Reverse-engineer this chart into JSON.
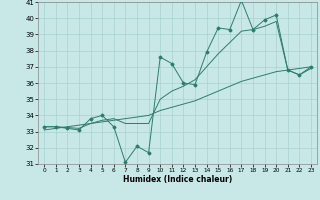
{
  "xlabel": "Humidex (Indice chaleur)",
  "ylabel": "",
  "background_color": "#c8e8e8",
  "grid_color": "#a8d0d0",
  "line_color": "#2e7b6e",
  "x": [
    0,
    1,
    2,
    3,
    4,
    5,
    6,
    7,
    8,
    9,
    10,
    11,
    12,
    13,
    14,
    15,
    16,
    17,
    18,
    19,
    20,
    21,
    22,
    23
  ],
  "y_main": [
    33.3,
    33.3,
    33.2,
    33.1,
    33.8,
    34.0,
    33.3,
    31.1,
    32.1,
    31.7,
    37.6,
    37.2,
    36.0,
    35.9,
    37.9,
    39.4,
    39.3,
    41.1,
    39.3,
    39.9,
    40.2,
    36.8,
    36.5,
    37.0
  ],
  "y_smooth": [
    33.3,
    33.3,
    33.25,
    33.2,
    33.5,
    33.7,
    33.8,
    33.5,
    33.5,
    33.5,
    35.0,
    35.5,
    35.8,
    36.2,
    37.0,
    37.8,
    38.5,
    39.2,
    39.3,
    39.5,
    39.8,
    36.8,
    36.5,
    36.9
  ],
  "y_trend": [
    33.1,
    33.2,
    33.3,
    33.4,
    33.5,
    33.6,
    33.7,
    33.8,
    33.9,
    34.0,
    34.3,
    34.5,
    34.7,
    34.9,
    35.2,
    35.5,
    35.8,
    36.1,
    36.3,
    36.5,
    36.7,
    36.8,
    36.9,
    37.0
  ],
  "ylim": [
    31,
    41
  ],
  "xlim": [
    -0.5,
    23.5
  ],
  "xticks": [
    0,
    1,
    2,
    3,
    4,
    5,
    6,
    7,
    8,
    9,
    10,
    11,
    12,
    13,
    14,
    15,
    16,
    17,
    18,
    19,
    20,
    21,
    22,
    23
  ],
  "yticks": [
    31,
    32,
    33,
    34,
    35,
    36,
    37,
    38,
    39,
    40,
    41
  ]
}
